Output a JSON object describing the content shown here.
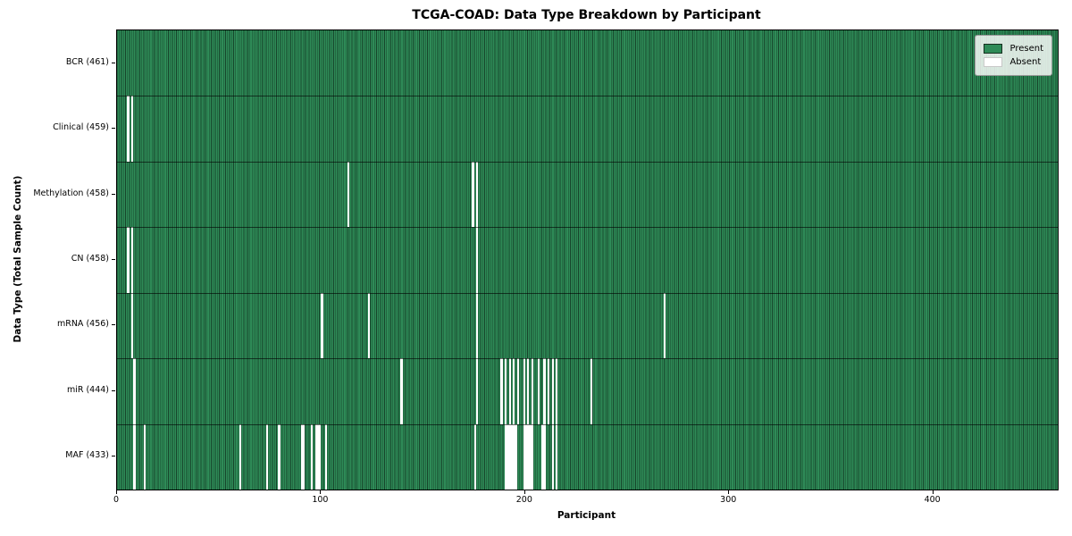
{
  "title": "TCGA-COAD: Data Type Breakdown by Participant",
  "legend": {
    "present_label": "Present",
    "absent_label": "Absent"
  },
  "colors": {
    "present": "#2e8b57",
    "absent": "#ffffff",
    "bar_edge": "#17462c",
    "row_separator": "#1b1b1b",
    "axis": "#000000"
  },
  "chart_data": {
    "type": "heatmap",
    "title": "TCGA-COAD: Data Type Breakdown by Participant",
    "xlabel": "Participant",
    "ylabel": "Data Type (Total Sample Count)",
    "xlim": [
      0,
      461
    ],
    "x_ticks": [
      0,
      100,
      200,
      300,
      400
    ],
    "n_participants": 461,
    "legend_entries": [
      "Present",
      "Absent"
    ],
    "legend_position": "upper right",
    "grid": false,
    "rows": [
      {
        "label": "BCR (461)",
        "data_type": "BCR",
        "count": 461,
        "absent": []
      },
      {
        "label": "Clinical (459)",
        "data_type": "Clinical",
        "count": 459,
        "absent": [
          5,
          7
        ]
      },
      {
        "label": "Methylation (458)",
        "data_type": "Methylation",
        "count": 458,
        "absent": [
          113,
          174,
          176
        ]
      },
      {
        "label": "CN (458)",
        "data_type": "CN",
        "count": 458,
        "absent": [
          5,
          7,
          176
        ]
      },
      {
        "label": "mRNA (456)",
        "data_type": "mRNA",
        "count": 456,
        "absent": [
          7,
          100,
          123,
          176,
          268
        ]
      },
      {
        "label": "miR (444)",
        "data_type": "miR",
        "count": 444,
        "absent": [
          8,
          139,
          176,
          188,
          190,
          192,
          194,
          196,
          199,
          201,
          203,
          206,
          209,
          211,
          213,
          215,
          232
        ]
      },
      {
        "label": "MAF (433)",
        "data_type": "MAF",
        "count": 433,
        "absent": [
          8,
          13,
          60,
          73,
          79,
          90,
          91,
          95,
          97,
          98,
          99,
          102,
          175,
          190,
          191,
          192,
          193,
          194,
          195,
          199,
          200,
          201,
          202,
          203,
          208,
          209,
          213,
          215
        ]
      }
    ]
  }
}
